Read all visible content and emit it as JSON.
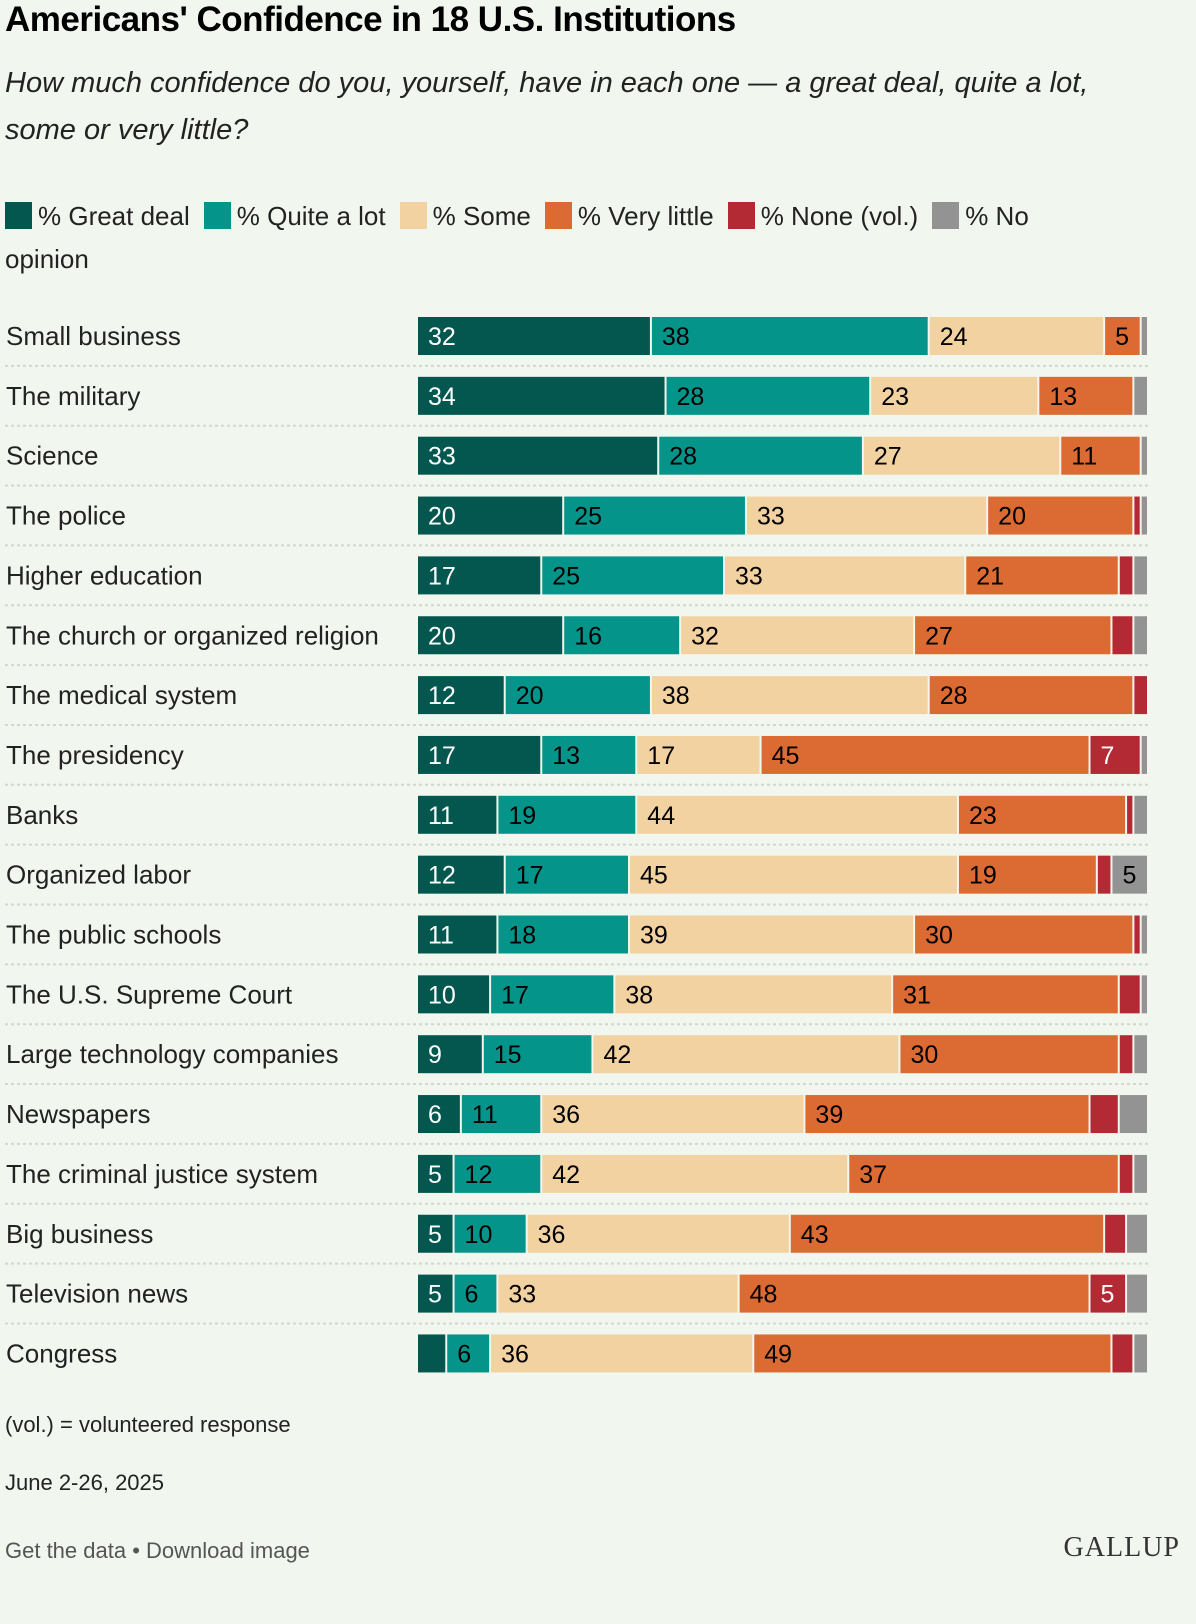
{
  "chart_data": {
    "type": "bar",
    "orientation": "horizontal",
    "stacked": true,
    "title": "Americans' Confidence in 18 U.S. Institutions",
    "subtitle": "How much confidence do you, yourself, have in each one — a great deal, quite a lot, some or very little?",
    "legend_position": "top",
    "xlim": [
      0,
      100
    ],
    "grid": false,
    "categories": [
      "Small business",
      "The military",
      "Science",
      "The police",
      "Higher education",
      "The church or organized religion",
      "The medical system",
      "The presidency",
      "Banks",
      "Organized labor",
      "The public schools",
      "The U.S. Supreme Court",
      "Large technology companies",
      "Newspapers",
      "The criminal justice system",
      "Big business",
      "Television news",
      "Congress"
    ],
    "series": [
      {
        "name": "% Great deal",
        "color": "#03574f",
        "text_color": "#ffffff",
        "values": [
          32,
          34,
          33,
          20,
          17,
          20,
          12,
          17,
          11,
          12,
          11,
          10,
          9,
          6,
          5,
          5,
          5,
          4
        ]
      },
      {
        "name": "% Quite a lot",
        "color": "#05948a",
        "text_color": "#000000",
        "values": [
          38,
          28,
          28,
          25,
          25,
          16,
          20,
          13,
          19,
          17,
          18,
          17,
          15,
          11,
          12,
          10,
          6,
          6
        ]
      },
      {
        "name": "% Some",
        "color": "#f3d2a2",
        "text_color": "#000000",
        "values": [
          24,
          23,
          27,
          33,
          33,
          32,
          38,
          17,
          44,
          45,
          39,
          38,
          42,
          36,
          42,
          36,
          33,
          36
        ]
      },
      {
        "name": "% Very little",
        "color": "#dc6a33",
        "text_color": "#000000",
        "values": [
          5,
          13,
          11,
          20,
          21,
          27,
          28,
          45,
          23,
          19,
          30,
          31,
          30,
          39,
          37,
          43,
          48,
          49
        ]
      },
      {
        "name": "% None (vol.)",
        "color": "#b32a35",
        "text_color": "#ffffff",
        "values": [
          0,
          0,
          0,
          1,
          2,
          3,
          2,
          7,
          1,
          2,
          1,
          3,
          2,
          4,
          2,
          3,
          5,
          3
        ]
      },
      {
        "name": "% No opinion",
        "color": "#939393",
        "text_color": "#000000",
        "values": [
          1,
          2,
          1,
          1,
          2,
          2,
          0,
          1,
          2,
          5,
          1,
          1,
          2,
          4,
          2,
          3,
          3,
          2
        ]
      }
    ],
    "label_min": 5
  },
  "footer": {
    "note": "(vol.) = volunteered response",
    "date": "June 2-26, 2025",
    "get_data": "Get the data",
    "separator": "•",
    "download": "Download image",
    "logo": "GALLUP"
  }
}
